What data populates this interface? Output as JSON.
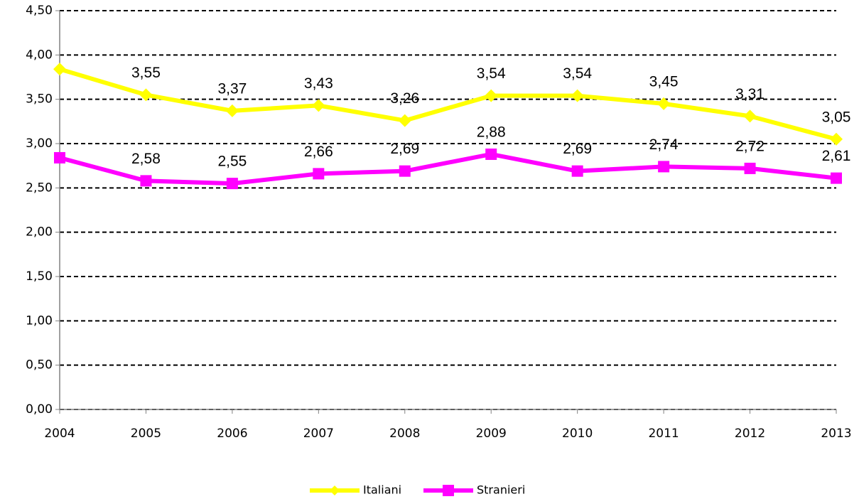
{
  "chart_data": {
    "type": "line",
    "categories": [
      "2004",
      "2005",
      "2006",
      "2007",
      "2008",
      "2009",
      "2010",
      "2011",
      "2012",
      "2013"
    ],
    "series": [
      {
        "name": "Italiani",
        "color": "#ffff00",
        "marker": "diamond",
        "values": [
          3.84,
          3.55,
          3.37,
          3.43,
          3.26,
          3.54,
          3.54,
          3.45,
          3.31,
          3.05
        ],
        "value_labels": [
          null,
          "3,55",
          "3,37",
          "3,43",
          "3,26",
          "3,54",
          "3,54",
          "3,45",
          "3,31",
          "3,05"
        ]
      },
      {
        "name": "Stranieri",
        "color": "#ff00ff",
        "marker": "square",
        "values": [
          2.84,
          2.58,
          2.55,
          2.66,
          2.69,
          2.88,
          2.69,
          2.74,
          2.72,
          2.61
        ],
        "value_labels": [
          null,
          "2,58",
          "2,55",
          "2,66",
          "2,69",
          "2,88",
          "2,69",
          "2,74",
          "2,72",
          "2,61"
        ]
      }
    ],
    "ylim": [
      0,
      4.5
    ],
    "yticks": [
      {
        "value": 0,
        "label": "0,00"
      },
      {
        "value": 0.5,
        "label": "0,50"
      },
      {
        "value": 1,
        "label": "1,00"
      },
      {
        "value": 1.5,
        "label": "1,50"
      },
      {
        "value": 2,
        "label": "2,00"
      },
      {
        "value": 2.5,
        "label": "2,50"
      },
      {
        "value": 3,
        "label": "3,00"
      },
      {
        "value": 3.5,
        "label": "3,50"
      },
      {
        "value": 4,
        "label": "4,00"
      },
      {
        "value": 4.5,
        "label": "4,50"
      }
    ],
    "grid": true,
    "legend": "bottom"
  }
}
